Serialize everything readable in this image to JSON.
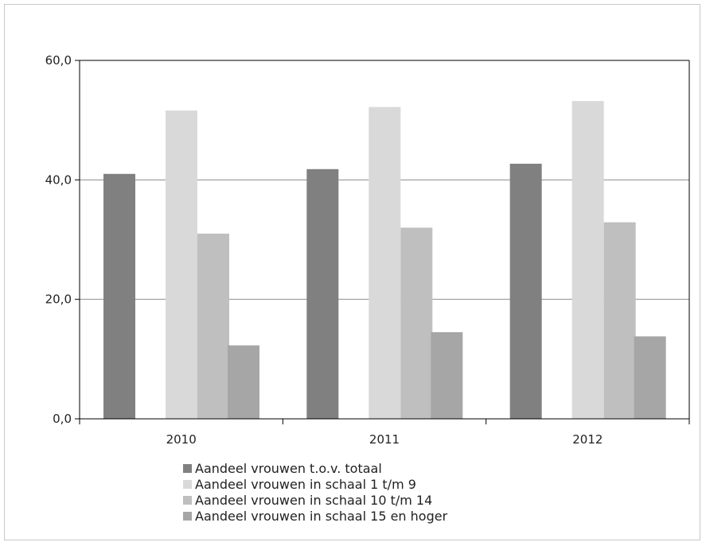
{
  "chart_data": {
    "type": "bar",
    "categories": [
      "2010",
      "2011",
      "2012"
    ],
    "series": [
      {
        "name": "Aandeel vrouwen t.o.v. totaal",
        "values": [
          41.0,
          41.8,
          42.7
        ],
        "color": "#808080"
      },
      {
        "name": "Aandeel vrouwen in schaal 1 t/m 9",
        "values": [
          51.6,
          52.2,
          53.2
        ],
        "color": "#d9d9d9"
      },
      {
        "name": "Aandeel vrouwen in schaal 10 t/m 14",
        "values": [
          31.0,
          32.0,
          32.9
        ],
        "color": "#bfbfbf"
      },
      {
        "name": "Aandeel vrouwen in schaal 15 en hoger",
        "values": [
          12.3,
          14.5,
          13.8
        ],
        "color": "#a6a6a6"
      }
    ],
    "title": "",
    "xlabel": "",
    "ylabel": "",
    "ylim": [
      0,
      60
    ],
    "yticks": [
      "0,0",
      "20,0",
      "40,0",
      "60,0"
    ],
    "ytick_values": [
      0,
      20,
      40,
      60
    ],
    "grid": true,
    "legend_position": "bottom"
  }
}
